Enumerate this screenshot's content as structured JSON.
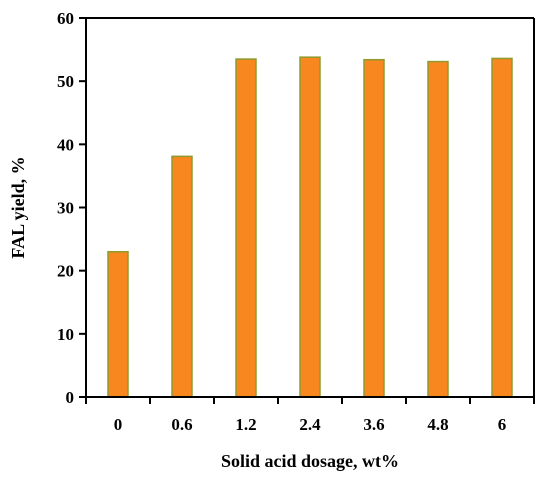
{
  "chart_data": {
    "type": "bar",
    "title": "",
    "xlabel": "Solid acid dosage, wt%",
    "ylabel": "FAL yield, %",
    "categories": [
      "0",
      "0.6",
      "1.2",
      "2.4",
      "3.6",
      "4.8",
      "6"
    ],
    "values": [
      23.0,
      38.1,
      53.5,
      53.8,
      53.4,
      53.1,
      53.6
    ],
    "ylim": [
      0,
      60
    ],
    "yticks": [
      "0",
      "10",
      "20",
      "30",
      "40",
      "50",
      "60"
    ],
    "grid": false,
    "legend": "none",
    "colors": {
      "bar_fill": "#F7871E",
      "bar_edge": "#8E9B2E",
      "axis": "#000000"
    }
  }
}
